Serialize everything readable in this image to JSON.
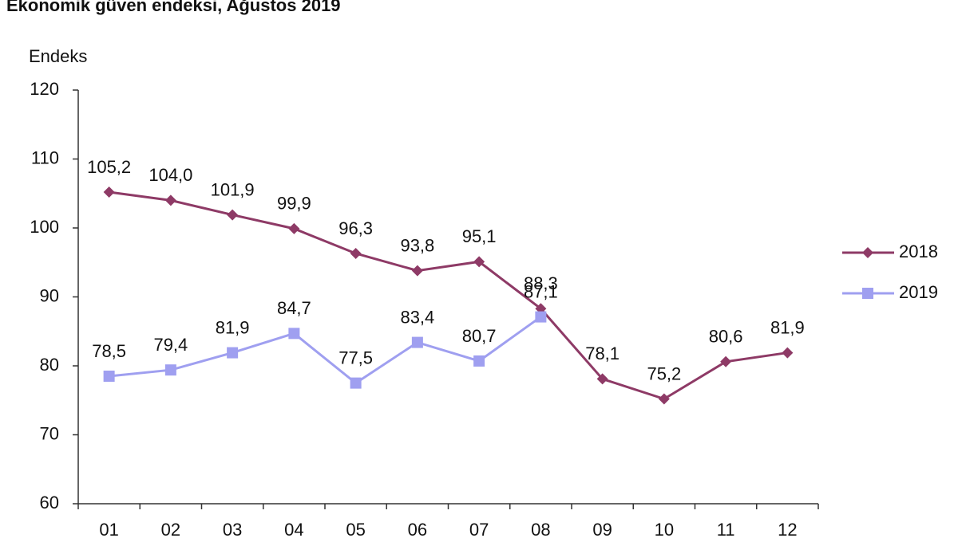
{
  "chart_data": {
    "type": "line",
    "title": "Ekonomik güven endeksi, Ağustos 2019",
    "y_label": "Endeks",
    "categories": [
      "01",
      "02",
      "03",
      "04",
      "05",
      "06",
      "07",
      "08",
      "09",
      "10",
      "11",
      "12"
    ],
    "series": [
      {
        "name": "2018",
        "color": "#8e3a66",
        "marker": "diamond",
        "values": [
          105.2,
          104.0,
          101.9,
          99.9,
          96.3,
          93.8,
          95.1,
          88.3,
          78.1,
          75.2,
          80.6,
          81.9
        ],
        "value_labels": [
          "105,2",
          "104,0",
          "101,9",
          "99,9",
          "96,3",
          "93,8",
          "95,1",
          "88,3",
          "78,1",
          "75,2",
          "80,6",
          "81,9"
        ]
      },
      {
        "name": "2019",
        "color": "#9f9ff0",
        "marker": "square",
        "values": [
          78.5,
          79.4,
          81.9,
          84.7,
          77.5,
          83.4,
          80.7,
          87.1,
          null,
          null,
          null,
          null
        ],
        "value_labels": [
          "78,5",
          "79,4",
          "81,9",
          "84,7",
          "77,5",
          "83,4",
          "80,7",
          "87,1",
          null,
          null,
          null,
          null
        ]
      }
    ],
    "ylim": [
      60,
      120
    ],
    "yticks": [
      60,
      70,
      80,
      90,
      100,
      110,
      120
    ],
    "legend": "right"
  }
}
